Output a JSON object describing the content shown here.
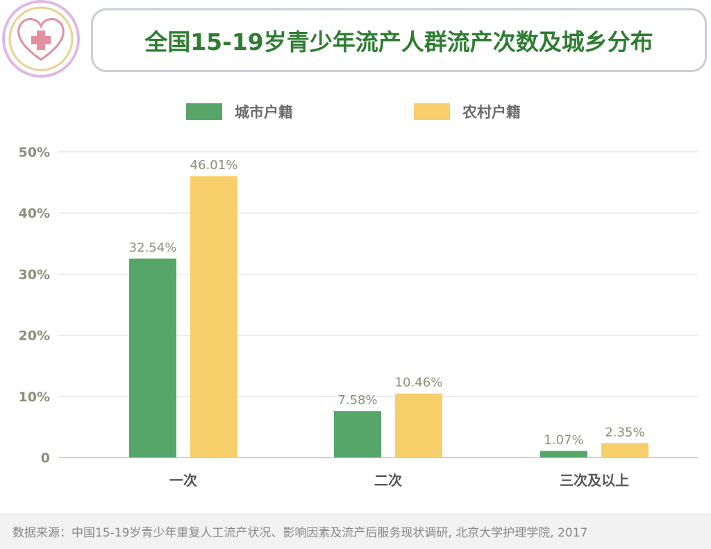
{
  "header": {
    "title": "全国15-19岁青少年流产人群流产次数及城乡分布"
  },
  "colors": {
    "title": "#2e7d32",
    "urban": "#56a66a",
    "rural": "#f6cf6a",
    "grid": "#d9d9d9",
    "axis_text": "#8a8f7a",
    "value_text": "#8a8f7a",
    "logo_outer": "#e0b8e2",
    "logo_inner": "#ecd08f",
    "logo_heart": "#e48fa0"
  },
  "icons": {
    "logo": "heart-cross-icon"
  },
  "chart_data": {
    "type": "bar",
    "title": "全国15-19岁青少年流产人群流产次数及城乡分布",
    "xlabel": "",
    "ylabel": "",
    "categories": [
      "一次",
      "二次",
      "三次及以上"
    ],
    "series": [
      {
        "name": "城市户籍",
        "values": [
          32.54,
          7.58,
          1.07
        ],
        "labels": [
          "32.54%",
          "7.58%",
          "1.07%"
        ]
      },
      {
        "name": "农村户籍",
        "values": [
          46.01,
          10.46,
          2.35
        ],
        "labels": [
          "46.01%",
          "10.46%",
          "2.35%"
        ]
      }
    ],
    "ylim": [
      0,
      50
    ],
    "yticks": [
      0,
      10,
      20,
      30,
      40,
      50
    ],
    "ytick_labels": [
      "0",
      "10%",
      "20%",
      "30%",
      "40%",
      "50%"
    ],
    "grid": true,
    "legend": "top-center"
  },
  "footer": {
    "source": "数据来源：中国15-19岁青少年重复人工流产状况、影响因素及流产后服务现状调研, 北京大学护理学院, 2017"
  }
}
